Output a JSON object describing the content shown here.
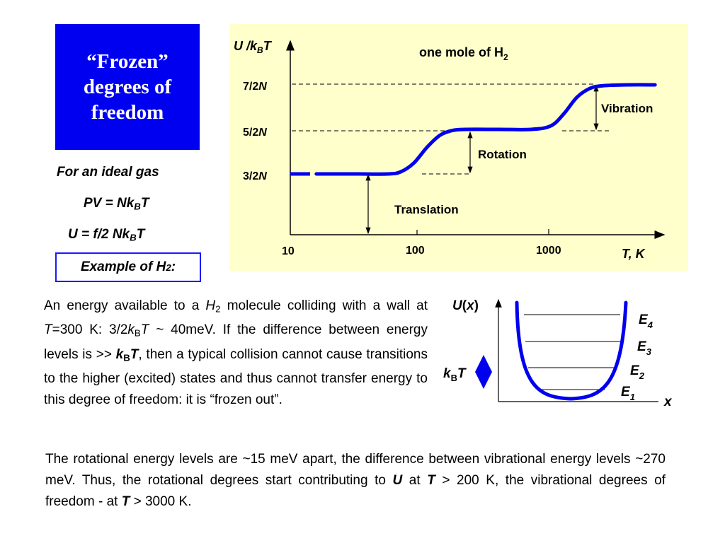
{
  "title": {
    "line1": "“Frozen”",
    "line2": "degrees of",
    "line3": "freedom"
  },
  "ideal_gas": {
    "heading": "For an ideal gas",
    "pv_eq": {
      "a": "PV = Nk",
      "b": "B",
      "c": "T"
    },
    "u_eq": {
      "a": "U = f/2 Nk",
      "b": "B",
      "c": "T"
    }
  },
  "example": {
    "a": "Example of H",
    "b": "2",
    "c": ":"
  },
  "chart_data": {
    "type": "line",
    "title": {
      "a": "one mole of H",
      "b": "2"
    },
    "ylabel": {
      "a": "U /k",
      "b": "B",
      "c": "T"
    },
    "xlabel": "T, K",
    "x_ticks": [
      "10",
      "100",
      "1000"
    ],
    "y_ticks": [
      {
        "value": 1.5,
        "a": "3/2",
        "b": "N"
      },
      {
        "value": 2.5,
        "a": "5/2",
        "b": "N"
      },
      {
        "value": 3.5,
        "a": "7/2",
        "b": "N"
      }
    ],
    "annotations": {
      "translation": "Translation",
      "rotation": "Rotation",
      "vibration": "Vibration"
    },
    "x_log10": [
      1.0,
      1.25,
      1.5,
      1.75,
      1.85,
      1.95,
      2.05,
      2.15,
      2.25,
      2.35,
      2.6,
      2.85,
      3.0,
      3.1,
      3.2,
      3.3,
      3.4,
      3.6,
      3.8
    ],
    "y": [
      1.5,
      1.5,
      1.5,
      1.5,
      1.55,
      1.75,
      2.1,
      2.37,
      2.48,
      2.5,
      2.5,
      2.5,
      2.58,
      2.85,
      3.22,
      3.42,
      3.48,
      3.5,
      3.5
    ],
    "dashed_until_x_log10": 1.2,
    "color": "#0000ee"
  },
  "paragraph1": {
    "p1": "An energy available to a ",
    "h": "H",
    "h_sub": "2",
    "p2": " molecule colliding with a wall at ",
    "t": "T",
    "p3": "=300 K: 3/2",
    "k": "k",
    "k_sub": "B",
    "t2": "T",
    "p4": " ~ 40meV. If the difference between energy levels is >> ",
    "k2": "k",
    "k2_sub": "B",
    "t3": "T",
    "p5": ", then a typical collision cannot cause transitions to the higher (excited) states and thus cannot transfer energy to this degree of freedom: it is “frozen out”."
  },
  "potential": {
    "ylabel": {
      "a": "U",
      "b": "(",
      "c": "x",
      "d": ")"
    },
    "xlabel": "x",
    "kbt": {
      "a": "k",
      "b": "B",
      "c": "T"
    },
    "levels": [
      {
        "a": "E",
        "b": "4"
      },
      {
        "a": "E",
        "b": "3"
      },
      {
        "a": "E",
        "b": "2"
      },
      {
        "a": "E",
        "b": "1"
      }
    ],
    "color": "#0000ee"
  },
  "paragraph2": {
    "p1": "The rotational energy levels are ~15 meV apart, the difference between vibrational energy levels ~270 meV. Thus, the rotational degrees start contributing to ",
    "u": "U",
    "p2": " at ",
    "t": "T",
    "p3": " > 200 K, the vibrational degrees of freedom - at ",
    "t2": "T",
    "p4": " > 3000 K."
  }
}
